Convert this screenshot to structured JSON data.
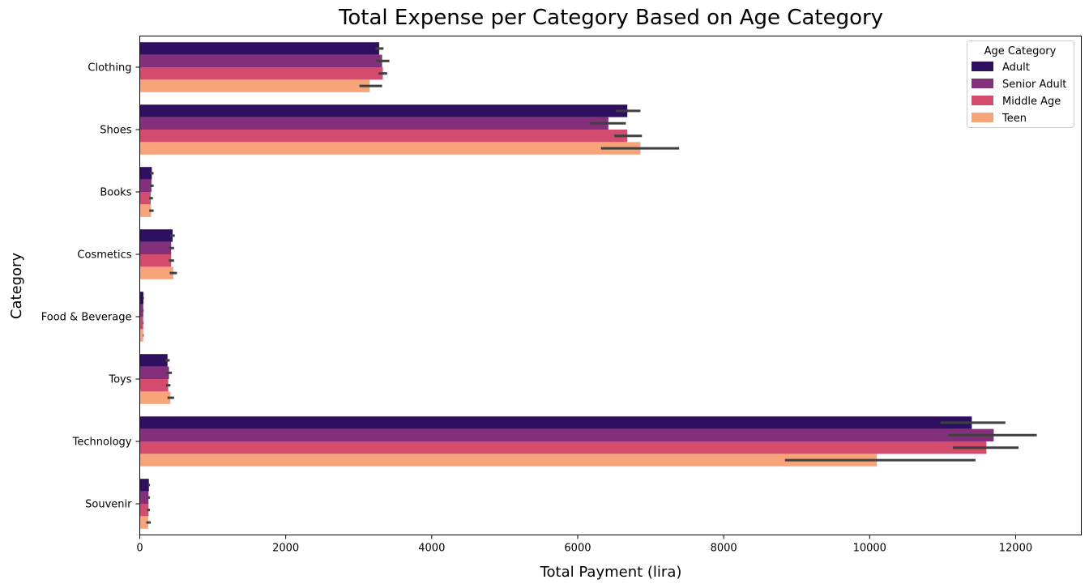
{
  "chart_data": {
    "type": "bar",
    "orientation": "horizontal",
    "title": "Total Expense per Category Based on Age Category",
    "xlabel": "Total Payment (lira)",
    "ylabel": "Category",
    "xlim": [
      0,
      12900
    ],
    "xticks": [
      0,
      2000,
      4000,
      6000,
      8000,
      10000,
      12000
    ],
    "categories": [
      "Clothing",
      "Shoes",
      "Books",
      "Cosmetics",
      "Food & Beverage",
      "Toys",
      "Technology",
      "Souvenir"
    ],
    "legend": {
      "title": "Age Category",
      "position": "top-right"
    },
    "series": [
      {
        "name": "Adult",
        "color": "#2f0f60",
        "values": [
          3280,
          6680,
          165,
          450,
          50,
          380,
          11400,
          125
        ],
        "errors": [
          [
            3230,
            3340
          ],
          [
            6520,
            6860
          ],
          [
            140,
            190
          ],
          [
            420,
            480
          ],
          [
            45,
            56
          ],
          [
            350,
            410
          ],
          [
            10970,
            11860
          ],
          [
            110,
            140
          ]
        ]
      },
      {
        "name": "Senior Adult",
        "color": "#832f7c",
        "values": [
          3320,
          6420,
          160,
          430,
          48,
          400,
          11700,
          120
        ],
        "errors": [
          [
            3240,
            3420
          ],
          [
            6170,
            6660
          ],
          [
            140,
            190
          ],
          [
            400,
            470
          ],
          [
            44,
            53
          ],
          [
            360,
            440
          ],
          [
            11080,
            12290
          ],
          [
            100,
            140
          ]
        ]
      },
      {
        "name": "Middle Age",
        "color": "#d34c6d",
        "values": [
          3330,
          6680,
          150,
          430,
          47,
          390,
          11600,
          120
        ],
        "errors": [
          [
            3270,
            3390
          ],
          [
            6500,
            6880
          ],
          [
            130,
            180
          ],
          [
            400,
            470
          ],
          [
            43,
            52
          ],
          [
            360,
            420
          ],
          [
            11140,
            12040
          ],
          [
            100,
            140
          ]
        ]
      },
      {
        "name": "Teen",
        "color": "#f7a47a",
        "values": [
          3150,
          6860,
          155,
          460,
          48,
          420,
          10100,
          115
        ],
        "errors": [
          [
            3010,
            3320
          ],
          [
            6320,
            7390
          ],
          [
            130,
            190
          ],
          [
            410,
            510
          ],
          [
            44,
            54
          ],
          [
            380,
            470
          ],
          [
            8840,
            11450
          ],
          [
            90,
            150
          ]
        ]
      }
    ]
  }
}
